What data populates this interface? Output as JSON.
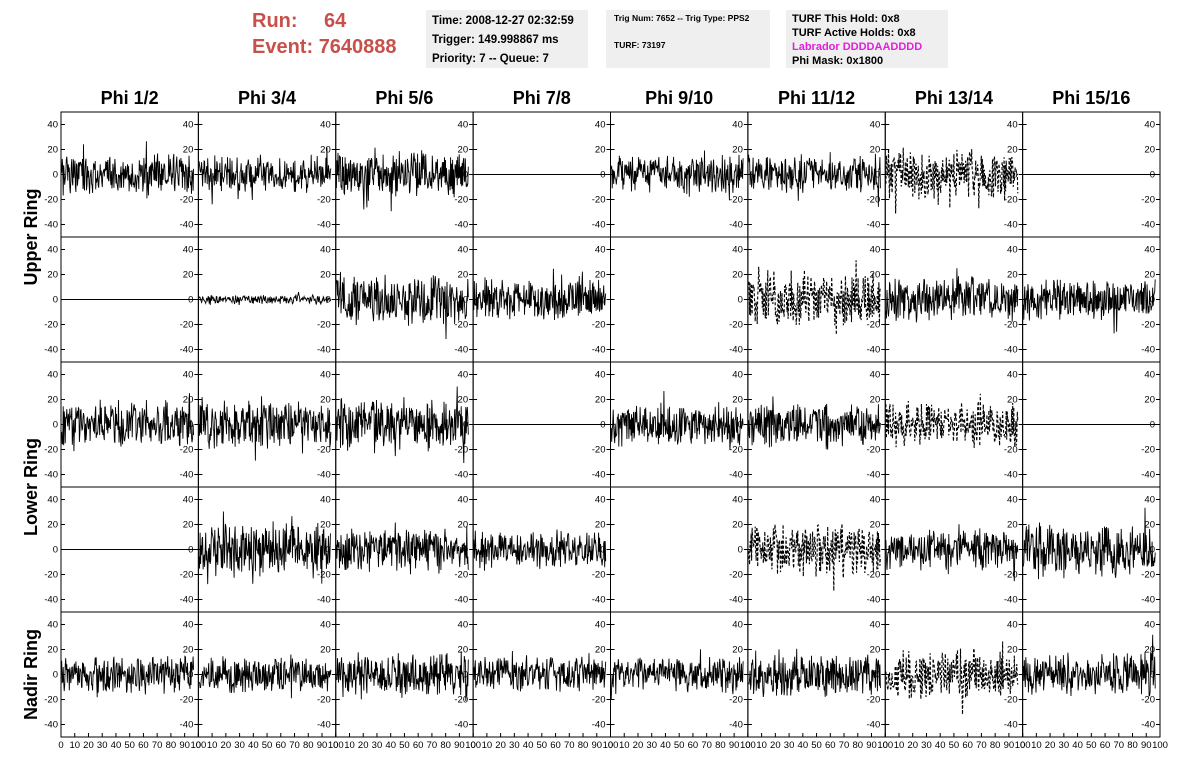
{
  "header": {
    "run_label": "Run:",
    "run_value": "64",
    "event_label": "Event:",
    "event_value": "7640888"
  },
  "info_box_1": {
    "time": "Time: 2008-12-27 02:32:59",
    "trigger": "Trigger: 149.998867 ms",
    "priority": "Priority: 7 -- Queue: 7"
  },
  "info_box_2": {
    "trig": "Trig Num: 7652 -- Trig Type: PPS2",
    "turf": "TURF: 73197"
  },
  "info_box_3": {
    "hold": "TURF This Hold: 0x8",
    "active": "TURF Active Holds: 0x8",
    "labrador": "Labrador DDDDAADDDD",
    "phimask": "Phi Mask: 0x1800"
  },
  "colors": {
    "run_text": "#c8504b",
    "labrador": "#e21fd9",
    "info_bg": "#efefef",
    "trace": "#000000"
  },
  "chart_data": {
    "type": "line",
    "columns": [
      "Phi 1/2",
      "Phi 3/4",
      "Phi 5/6",
      "Phi 7/8",
      "Phi 9/10",
      "Phi 11/12",
      "Phi 13/14",
      "Phi 15/16"
    ],
    "rows": [
      "Upper Ring",
      "Upper Ring",
      "Lower Ring",
      "Lower Ring",
      "Nadir Ring"
    ],
    "row_labels": [
      {
        "text": "Upper Ring",
        "rows": [
          0,
          1
        ]
      },
      {
        "text": "Lower Ring",
        "rows": [
          2,
          3
        ]
      },
      {
        "text": "Nadir Ring",
        "rows": [
          4
        ]
      }
    ],
    "xlim": [
      0,
      100
    ],
    "ylim": [
      -50,
      50
    ],
    "x_ticks": [
      "0",
      "10",
      "20",
      "30",
      "40",
      "50",
      "60",
      "70",
      "80",
      "90",
      "100"
    ],
    "y_ticks": [
      "40",
      "20",
      "0",
      "-20",
      "-40"
    ],
    "grid": false,
    "panels": [
      [
        {
          "mode": "noise",
          "amp": 18,
          "seed": 11
        },
        {
          "mode": "noise",
          "amp": 16,
          "seed": 12
        },
        {
          "mode": "noise",
          "amp": 20,
          "seed": 13
        },
        {
          "mode": "flat"
        },
        {
          "mode": "noise",
          "amp": 17,
          "seed": 15
        },
        {
          "mode": "noise",
          "amp": 18,
          "seed": 16
        },
        {
          "mode": "dashed",
          "amp": 22,
          "seed": 17
        },
        {
          "mode": "flat"
        }
      ],
      [
        {
          "mode": "flat"
        },
        {
          "mode": "noise",
          "amp": 4,
          "seed": 22
        },
        {
          "mode": "noise",
          "amp": 24,
          "seed": 23
        },
        {
          "mode": "noise",
          "amp": 18,
          "seed": 24
        },
        {
          "mode": "empty"
        },
        {
          "mode": "dashed",
          "amp": 24,
          "seed": 26
        },
        {
          "mode": "noise",
          "amp": 20,
          "seed": 27
        },
        {
          "mode": "noise",
          "amp": 18,
          "seed": 28
        }
      ],
      [
        {
          "mode": "noise",
          "amp": 20,
          "seed": 31
        },
        {
          "mode": "noise",
          "amp": 22,
          "seed": 32
        },
        {
          "mode": "noise",
          "amp": 24,
          "seed": 33
        },
        {
          "mode": "flat"
        },
        {
          "mode": "noise",
          "amp": 18,
          "seed": 35
        },
        {
          "mode": "noise",
          "amp": 20,
          "seed": 36
        },
        {
          "mode": "dashed",
          "amp": 20,
          "seed": 37
        },
        {
          "mode": "flat"
        }
      ],
      [
        {
          "mode": "flat"
        },
        {
          "mode": "noise",
          "amp": 24,
          "seed": 42
        },
        {
          "mode": "noise",
          "amp": 20,
          "seed": 43
        },
        {
          "mode": "noise",
          "amp": 16,
          "seed": 44
        },
        {
          "mode": "empty"
        },
        {
          "mode": "dashed",
          "amp": 24,
          "seed": 46
        },
        {
          "mode": "noise",
          "amp": 18,
          "seed": 47
        },
        {
          "mode": "noise",
          "amp": 24,
          "seed": 48
        }
      ],
      [
        {
          "mode": "noise",
          "amp": 18,
          "seed": 51
        },
        {
          "mode": "noise",
          "amp": 16,
          "seed": 52
        },
        {
          "mode": "noise",
          "amp": 20,
          "seed": 53
        },
        {
          "mode": "noise",
          "amp": 16,
          "seed": 54
        },
        {
          "mode": "noise",
          "amp": 16,
          "seed": 55
        },
        {
          "mode": "noise",
          "amp": 20,
          "seed": 56
        },
        {
          "mode": "dashed",
          "amp": 22,
          "seed": 57
        },
        {
          "mode": "noise",
          "amp": 20,
          "seed": 58
        }
      ]
    ]
  }
}
